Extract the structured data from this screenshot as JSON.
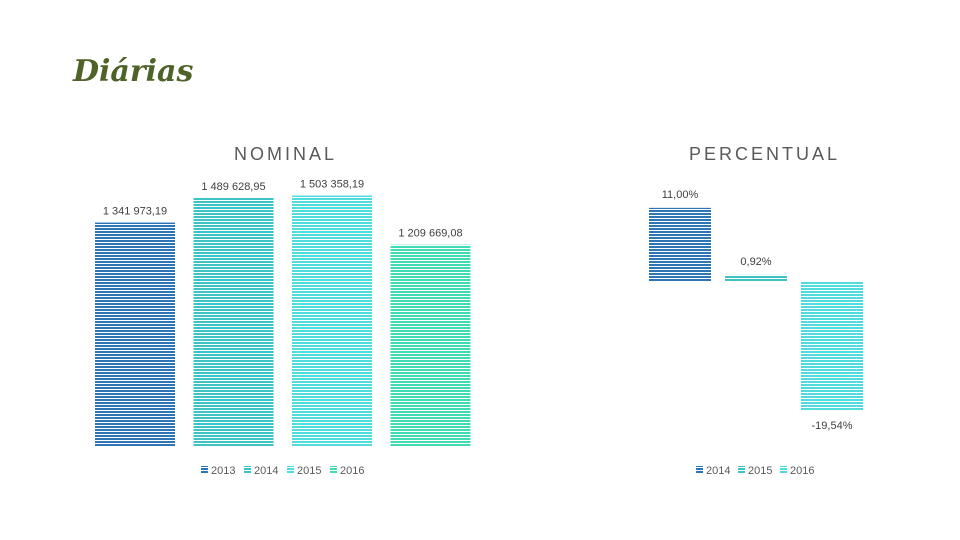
{
  "page": {
    "title": "Diárias"
  },
  "chart_data": [
    {
      "type": "bar",
      "title": "NOMINAL",
      "categories": [
        "2013",
        "2014",
        "2015",
        "2016"
      ],
      "values": [
        1341973.19,
        1489628.95,
        1503358.19,
        1209669.08
      ],
      "data_labels": [
        "1 341 973,19",
        "1 489 628,95",
        "1 503 358,19",
        "1 209 669,08"
      ],
      "legend": [
        "2013",
        "2014",
        "2015",
        "2016"
      ],
      "legend_position": "bottom",
      "grid": false,
      "colors": [
        "#2e75b6",
        "#3cc3c3",
        "#50dcdc",
        "#40dbb4"
      ]
    },
    {
      "type": "bar",
      "title": "PERCENTUAL",
      "categories": [
        "2014",
        "2015",
        "2016"
      ],
      "values": [
        11.0,
        0.92,
        -19.54
      ],
      "data_labels": [
        "11,00%",
        "0,92%",
        "-19,54%"
      ],
      "legend": [
        "2014",
        "2015",
        "2016"
      ],
      "legend_position": "bottom",
      "grid": false,
      "colors": [
        "#2e75b6",
        "#3cc3c3",
        "#50dcdc"
      ]
    }
  ]
}
